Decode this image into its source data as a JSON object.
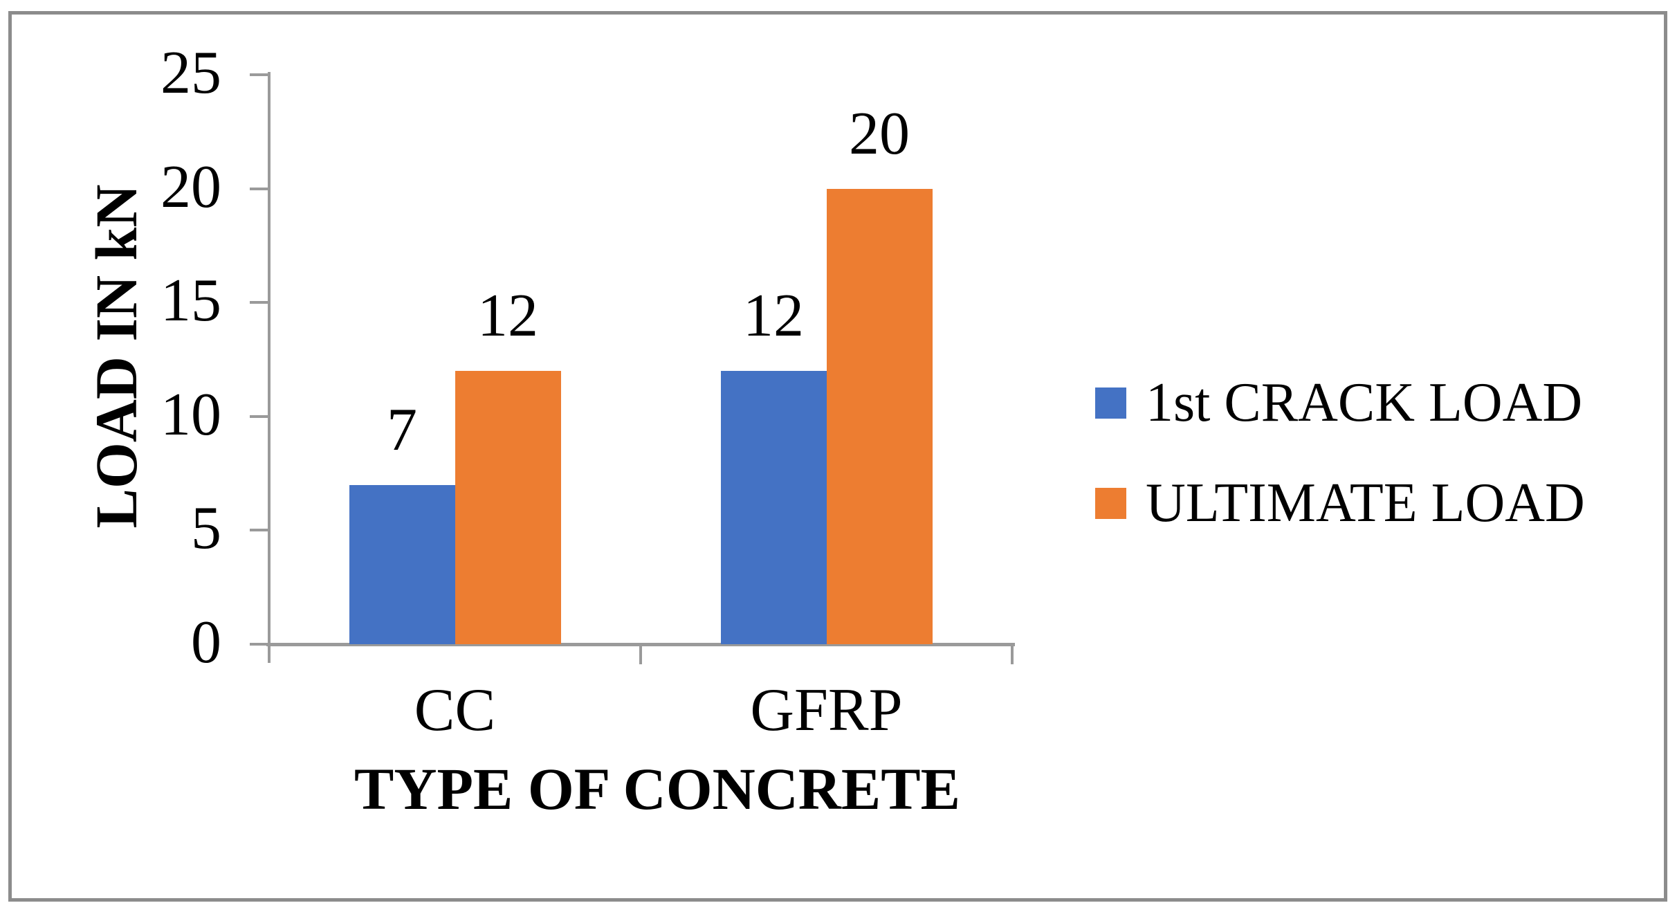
{
  "figure": {
    "background_color": "#ffffff",
    "border_color": "#8c8c8c",
    "axis_color": "#9a9a9a",
    "text_color": "#000000"
  },
  "chart_data": {
    "type": "bar",
    "title": "",
    "xlabel": "TYPE OF CONCRETE",
    "ylabel": "LOAD IN kN",
    "categories": [
      "CC",
      "GFRP"
    ],
    "series": [
      {
        "name": "1st CRACK LOAD",
        "color": "#4472C4",
        "values": [
          7,
          12
        ]
      },
      {
        "name": "ULTIMATE LOAD",
        "color": "#ED7D31",
        "values": [
          12,
          20
        ]
      }
    ],
    "data_labels": [
      [
        "7",
        "12"
      ],
      [
        "12",
        "20"
      ]
    ],
    "ylim": [
      0,
      25
    ],
    "ytick_interval": 5,
    "ytick_labels": [
      "0",
      "5",
      "10",
      "15",
      "20",
      "25"
    ],
    "grid": false,
    "legend_position": "right"
  }
}
